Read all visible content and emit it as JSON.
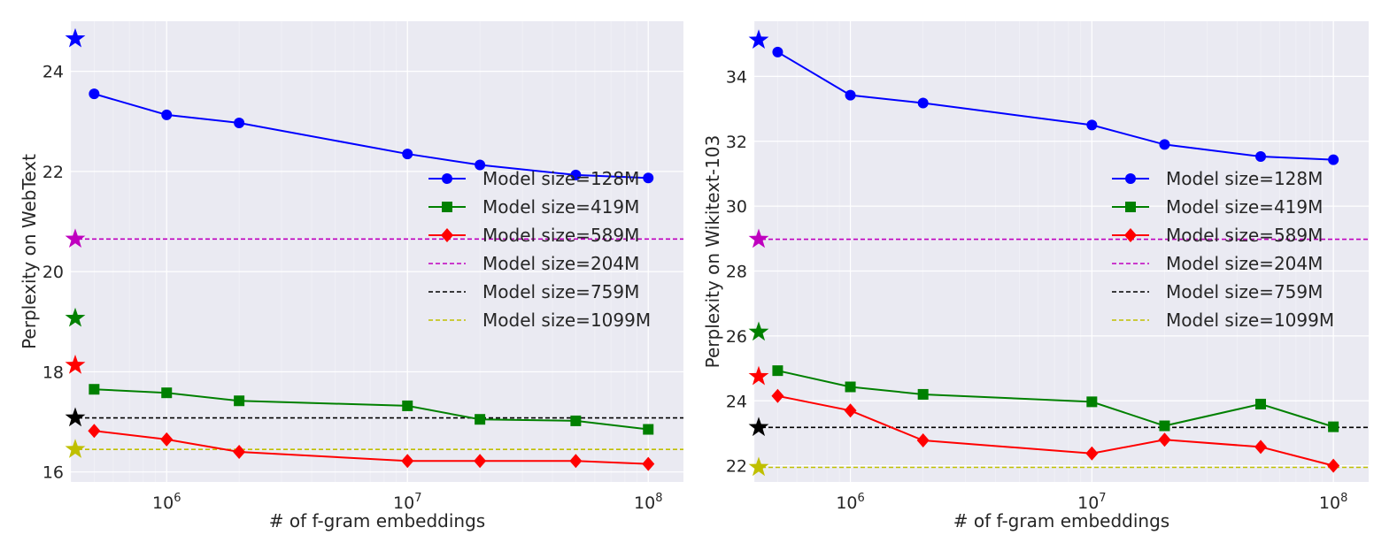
{
  "chart_data": [
    {
      "type": "line",
      "title": "",
      "xlabel": "# of f-gram embeddings",
      "ylabel": "Perplexity on WebText",
      "xscale": "log",
      "xlim": [
        400000,
        140000000
      ],
      "ylim": [
        15.8,
        25.0
      ],
      "yticks": [
        16,
        18,
        20,
        22,
        24
      ],
      "xticks": [
        {
          "value": 1000000,
          "base": "10",
          "exp": "6"
        },
        {
          "value": 10000000,
          "base": "10",
          "exp": "7"
        },
        {
          "value": 100000000,
          "base": "10",
          "exp": "8"
        }
      ],
      "x": [
        500000,
        1000000,
        2000000,
        10000000,
        20000000,
        50000000,
        100000000
      ],
      "series": [
        {
          "name": "Model size=128M",
          "kind": "line",
          "marker": "circle",
          "color": "#0000ff",
          "values": [
            23.55,
            23.13,
            22.97,
            22.35,
            22.13,
            21.93,
            21.87
          ],
          "star": 24.65
        },
        {
          "name": "Model size=419M",
          "kind": "line",
          "marker": "square",
          "color": "#008000",
          "values": [
            17.65,
            17.58,
            17.42,
            17.32,
            17.05,
            17.02,
            16.85
          ],
          "star": 19.07
        },
        {
          "name": "Model size=589M",
          "kind": "line",
          "marker": "diamond",
          "color": "#ff0000",
          "values": [
            16.82,
            16.65,
            16.4,
            16.22,
            16.22,
            16.22,
            16.16
          ],
          "star": 18.13
        },
        {
          "name": "Model size=204M",
          "kind": "hline",
          "color": "#bf00bf",
          "value": 20.65,
          "star": 20.65
        },
        {
          "name": "Model size=759M",
          "kind": "hline",
          "color": "#000000",
          "value": 17.08,
          "star": 17.08
        },
        {
          "name": "Model size=1099M",
          "kind": "hline",
          "color": "#bfbf00",
          "value": 16.45,
          "star": 16.45
        }
      ],
      "legend": "center-right"
    },
    {
      "type": "line",
      "title": "",
      "xlabel": "# of f-gram embeddings",
      "ylabel": "Perplexity on Wikitext-103",
      "xscale": "log",
      "xlim": [
        400000,
        140000000
      ],
      "ylim": [
        21.5,
        35.7
      ],
      "yticks": [
        22,
        24,
        26,
        28,
        30,
        32,
        34
      ],
      "xticks": [
        {
          "value": 1000000,
          "base": "10",
          "exp": "6"
        },
        {
          "value": 10000000,
          "base": "10",
          "exp": "7"
        },
        {
          "value": 100000000,
          "base": "10",
          "exp": "8"
        }
      ],
      "x": [
        500000,
        1000000,
        2000000,
        10000000,
        20000000,
        50000000,
        100000000
      ],
      "series": [
        {
          "name": "Model size=128M",
          "kind": "line",
          "marker": "circle",
          "color": "#0000ff",
          "values": [
            34.75,
            33.42,
            33.18,
            32.5,
            31.9,
            31.53,
            31.43
          ],
          "star": 35.12
        },
        {
          "name": "Model size=419M",
          "kind": "line",
          "marker": "square",
          "color": "#008000",
          "values": [
            24.93,
            24.43,
            24.2,
            23.97,
            23.23,
            23.9,
            23.2
          ],
          "star": 26.12
        },
        {
          "name": "Model size=589M",
          "kind": "line",
          "marker": "diamond",
          "color": "#ff0000",
          "values": [
            24.15,
            23.7,
            22.78,
            22.38,
            22.8,
            22.58,
            22.0
          ],
          "star": 24.75
        },
        {
          "name": "Model size=204M",
          "kind": "hline",
          "color": "#bf00bf",
          "value": 28.98,
          "star": 28.98
        },
        {
          "name": "Model size=759M",
          "kind": "hline",
          "color": "#000000",
          "value": 23.18,
          "star": 23.18
        },
        {
          "name": "Model size=1099M",
          "kind": "hline",
          "color": "#bfbf00",
          "value": 21.95,
          "star": 21.95
        }
      ],
      "legend": "center-right"
    }
  ]
}
